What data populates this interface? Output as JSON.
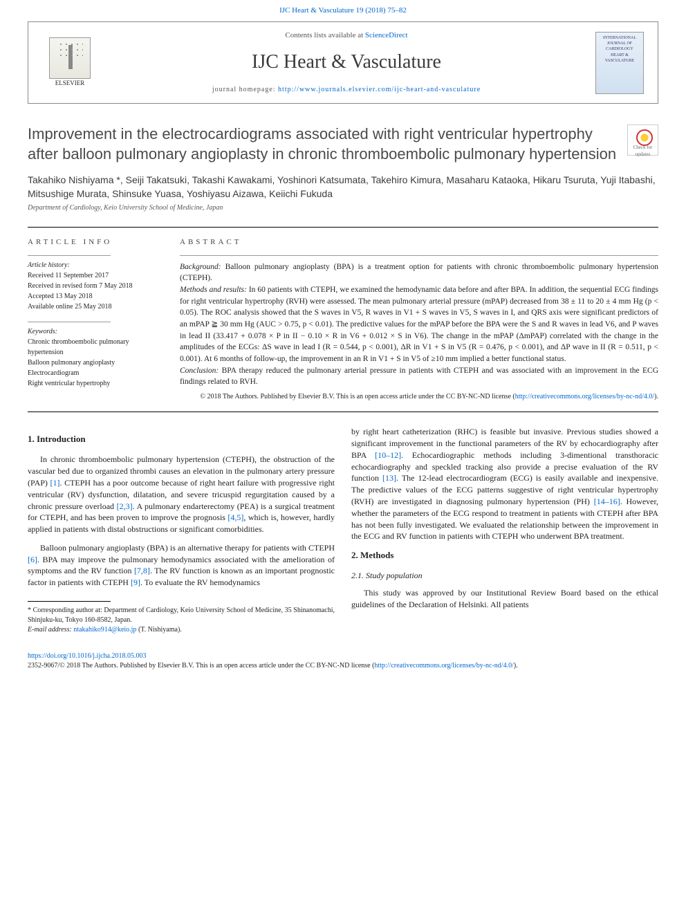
{
  "top_link": {
    "text": "IJC Heart & Vasculature 19 (2018) 75–82",
    "url_label": "IJC Heart & Vasculature 19 (2018) 75–82"
  },
  "header": {
    "contents_prefix": "Contents lists available at ",
    "contents_link": "ScienceDirect",
    "journal_name": "IJC Heart & Vasculature",
    "homepage_prefix": "journal homepage: ",
    "homepage_url": "http://www.journals.elsevier.com/ijc-heart-and-vasculature",
    "elsevier_label": "ELSEVIER",
    "cover_text": "INTERNATIONAL JOURNAL OF CARDIOLOGY HEART & VASCULATURE"
  },
  "check_badge": "Check for updates",
  "title": "Improvement in the electrocardiograms associated with right ventricular hypertrophy after balloon pulmonary angioplasty in chronic thromboembolic pulmonary hypertension",
  "authors": "Takahiko Nishiyama *, Seiji Takatsuki, Takashi Kawakami, Yoshinori Katsumata, Takehiro Kimura, Masaharu Kataoka, Hikaru Tsuruta, Yuji Itabashi, Mitsushige Murata, Shinsuke Yuasa, Yoshiyasu Aizawa, Keiichi Fukuda",
  "affiliation": "Department of Cardiology, Keio University School of Medicine, Japan",
  "article_info": {
    "heading": "article info",
    "history_label": "Article history:",
    "history": [
      "Received 11 September 2017",
      "Received in revised form 7 May 2018",
      "Accepted 13 May 2018",
      "Available online 25 May 2018"
    ],
    "keywords_label": "Keywords:",
    "keywords": [
      "Chronic thromboembolic pulmonary hypertension",
      "Balloon pulmonary angioplasty",
      "Electrocardiogram",
      "Right ventricular hypertrophy"
    ]
  },
  "abstract": {
    "heading": "abstract",
    "segments": [
      {
        "label": "Background:",
        "text": " Balloon pulmonary angioplasty (BPA) is a treatment option for patients with chronic thromboembolic pulmonary hypertension (CTEPH)."
      },
      {
        "label": "Methods and results:",
        "text": " In 60 patients with CTEPH, we examined the hemodynamic data before and after BPA. In addition, the sequential ECG findings for right ventricular hypertrophy (RVH) were assessed. The mean pulmonary arterial pressure (mPAP) decreased from 38 ± 11 to 20 ± 4 mm Hg (p < 0.05). The ROC analysis showed that the S waves in V5, R waves in V1 + S waves in V5, S waves in I, and QRS axis were significant predictors of an mPAP ≧ 30 mm Hg (AUC > 0.75, p < 0.01). The predictive values for the mPAP before the BPA were the S and R waves in lead V6, and P waves in lead II (33.417 + 0.078 × P in II − 0.10 × R in V6 + 0.012 × S in V6). The change in the mPAP (ΔmPAP) correlated with the change in the amplitudes of the ECGs: ΔS wave in lead I (R = 0.544, p < 0.001), ΔR in V1 + S in V5 (R = 0.476, p < 0.001), and ΔP wave in II (R = 0.511, p < 0.001). At 6 months of follow-up, the improvement in an R in V1 + S in V5 of ≥10 mm implied a better functional status."
      },
      {
        "label": "Conclusion:",
        "text": " BPA therapy reduced the pulmonary arterial pressure in patients with CTEPH and was associated with an improvement in the ECG findings related to RVH."
      }
    ],
    "copyright_line1": "© 2018 The Authors. Published by Elsevier B.V. This is an open access article under the CC BY-NC-ND license (",
    "copyright_link": "http://creativecommons.org/licenses/by-nc-nd/4.0/",
    "copyright_line2": ")."
  },
  "body": {
    "intro_heading": "1. Introduction",
    "left_paras": [
      "In chronic thromboembolic pulmonary hypertension (CTEPH), the obstruction of the vascular bed due to organized thrombi causes an elevation in the pulmonary artery pressure (PAP) [1]. CTEPH has a poor outcome because of right heart failure with progressive right ventricular (RV) dysfunction, dilatation, and severe tricuspid regurgitation caused by a chronic pressure overload [2,3]. A pulmonary endarterectomy (PEA) is a surgical treatment for CTEPH, and has been proven to improve the prognosis [4,5], which is, however, hardly applied in patients with distal obstructions or significant comorbidities.",
      "Balloon pulmonary angioplasty (BPA) is an alternative therapy for patients with CTEPH [6]. BPA may improve the pulmonary hemodynamics associated with the amelioration of symptoms and the RV function [7,8]. The RV function is known as an important prognostic factor in patients with CTEPH [9]. To evaluate the RV hemodynamics"
    ],
    "right_para": "by right heart catheterization (RHC) is feasible but invasive. Previous studies showed a significant improvement in the functional parameters of the RV by echocardiography after BPA [10–12]. Echocardiographic methods including 3-dimentional transthoracic echocardiography and speckled tracking also provide a precise evaluation of the RV function [13]. The 12-lead electrocardiogram (ECG) is easily available and inexpensive. The predictive values of the ECG patterns suggestive of right ventricular hypertrophy (RVH) are investigated in diagnosing pulmonary hypertension (PH) [14–16]. However, whether the parameters of the ECG respond to treatment in patients with CTEPH after BPA has not been fully investigated. We evaluated the relationship between the improvement in the ECG and RV function in patients with CTEPH who underwent BPA treatment.",
    "methods_heading": "2. Methods",
    "study_pop_heading": "2.1. Study population",
    "study_pop_para": "This study was approved by our Institutional Review Board based on the ethical guidelines of the Declaration of Helsinki. All patients"
  },
  "footnote": {
    "corr_label": "* Corresponding author at: ",
    "corr_text": "Department of Cardiology, Keio University School of Medicine, 35 Shinanomachi, Shinjuku-ku, Tokyo 160-8582, Japan.",
    "email_label": "E-mail address: ",
    "email": "ntakahiko914@keio.jp",
    "email_suffix": " (T. Nishiyama)."
  },
  "bottom": {
    "doi": "https://doi.org/10.1016/j.ijcha.2018.05.003",
    "issn_line": "2352-9067/© 2018 The Authors. Published by Elsevier B.V. This is an open access article under the CC BY-NC-ND license (",
    "issn_link": "http://creativecommons.org/licenses/by-nc-nd/4.0/",
    "issn_suffix": ")."
  },
  "cite_refs": [
    "[1]",
    "[2,3]",
    "[4,5]",
    "[6]",
    "[7,8]",
    "[9]",
    "[10–12]",
    "[13]",
    "[14–16]"
  ],
  "colors": {
    "link": "#0066cc",
    "heading_gray": "#4a4a4a",
    "text": "#222222"
  }
}
